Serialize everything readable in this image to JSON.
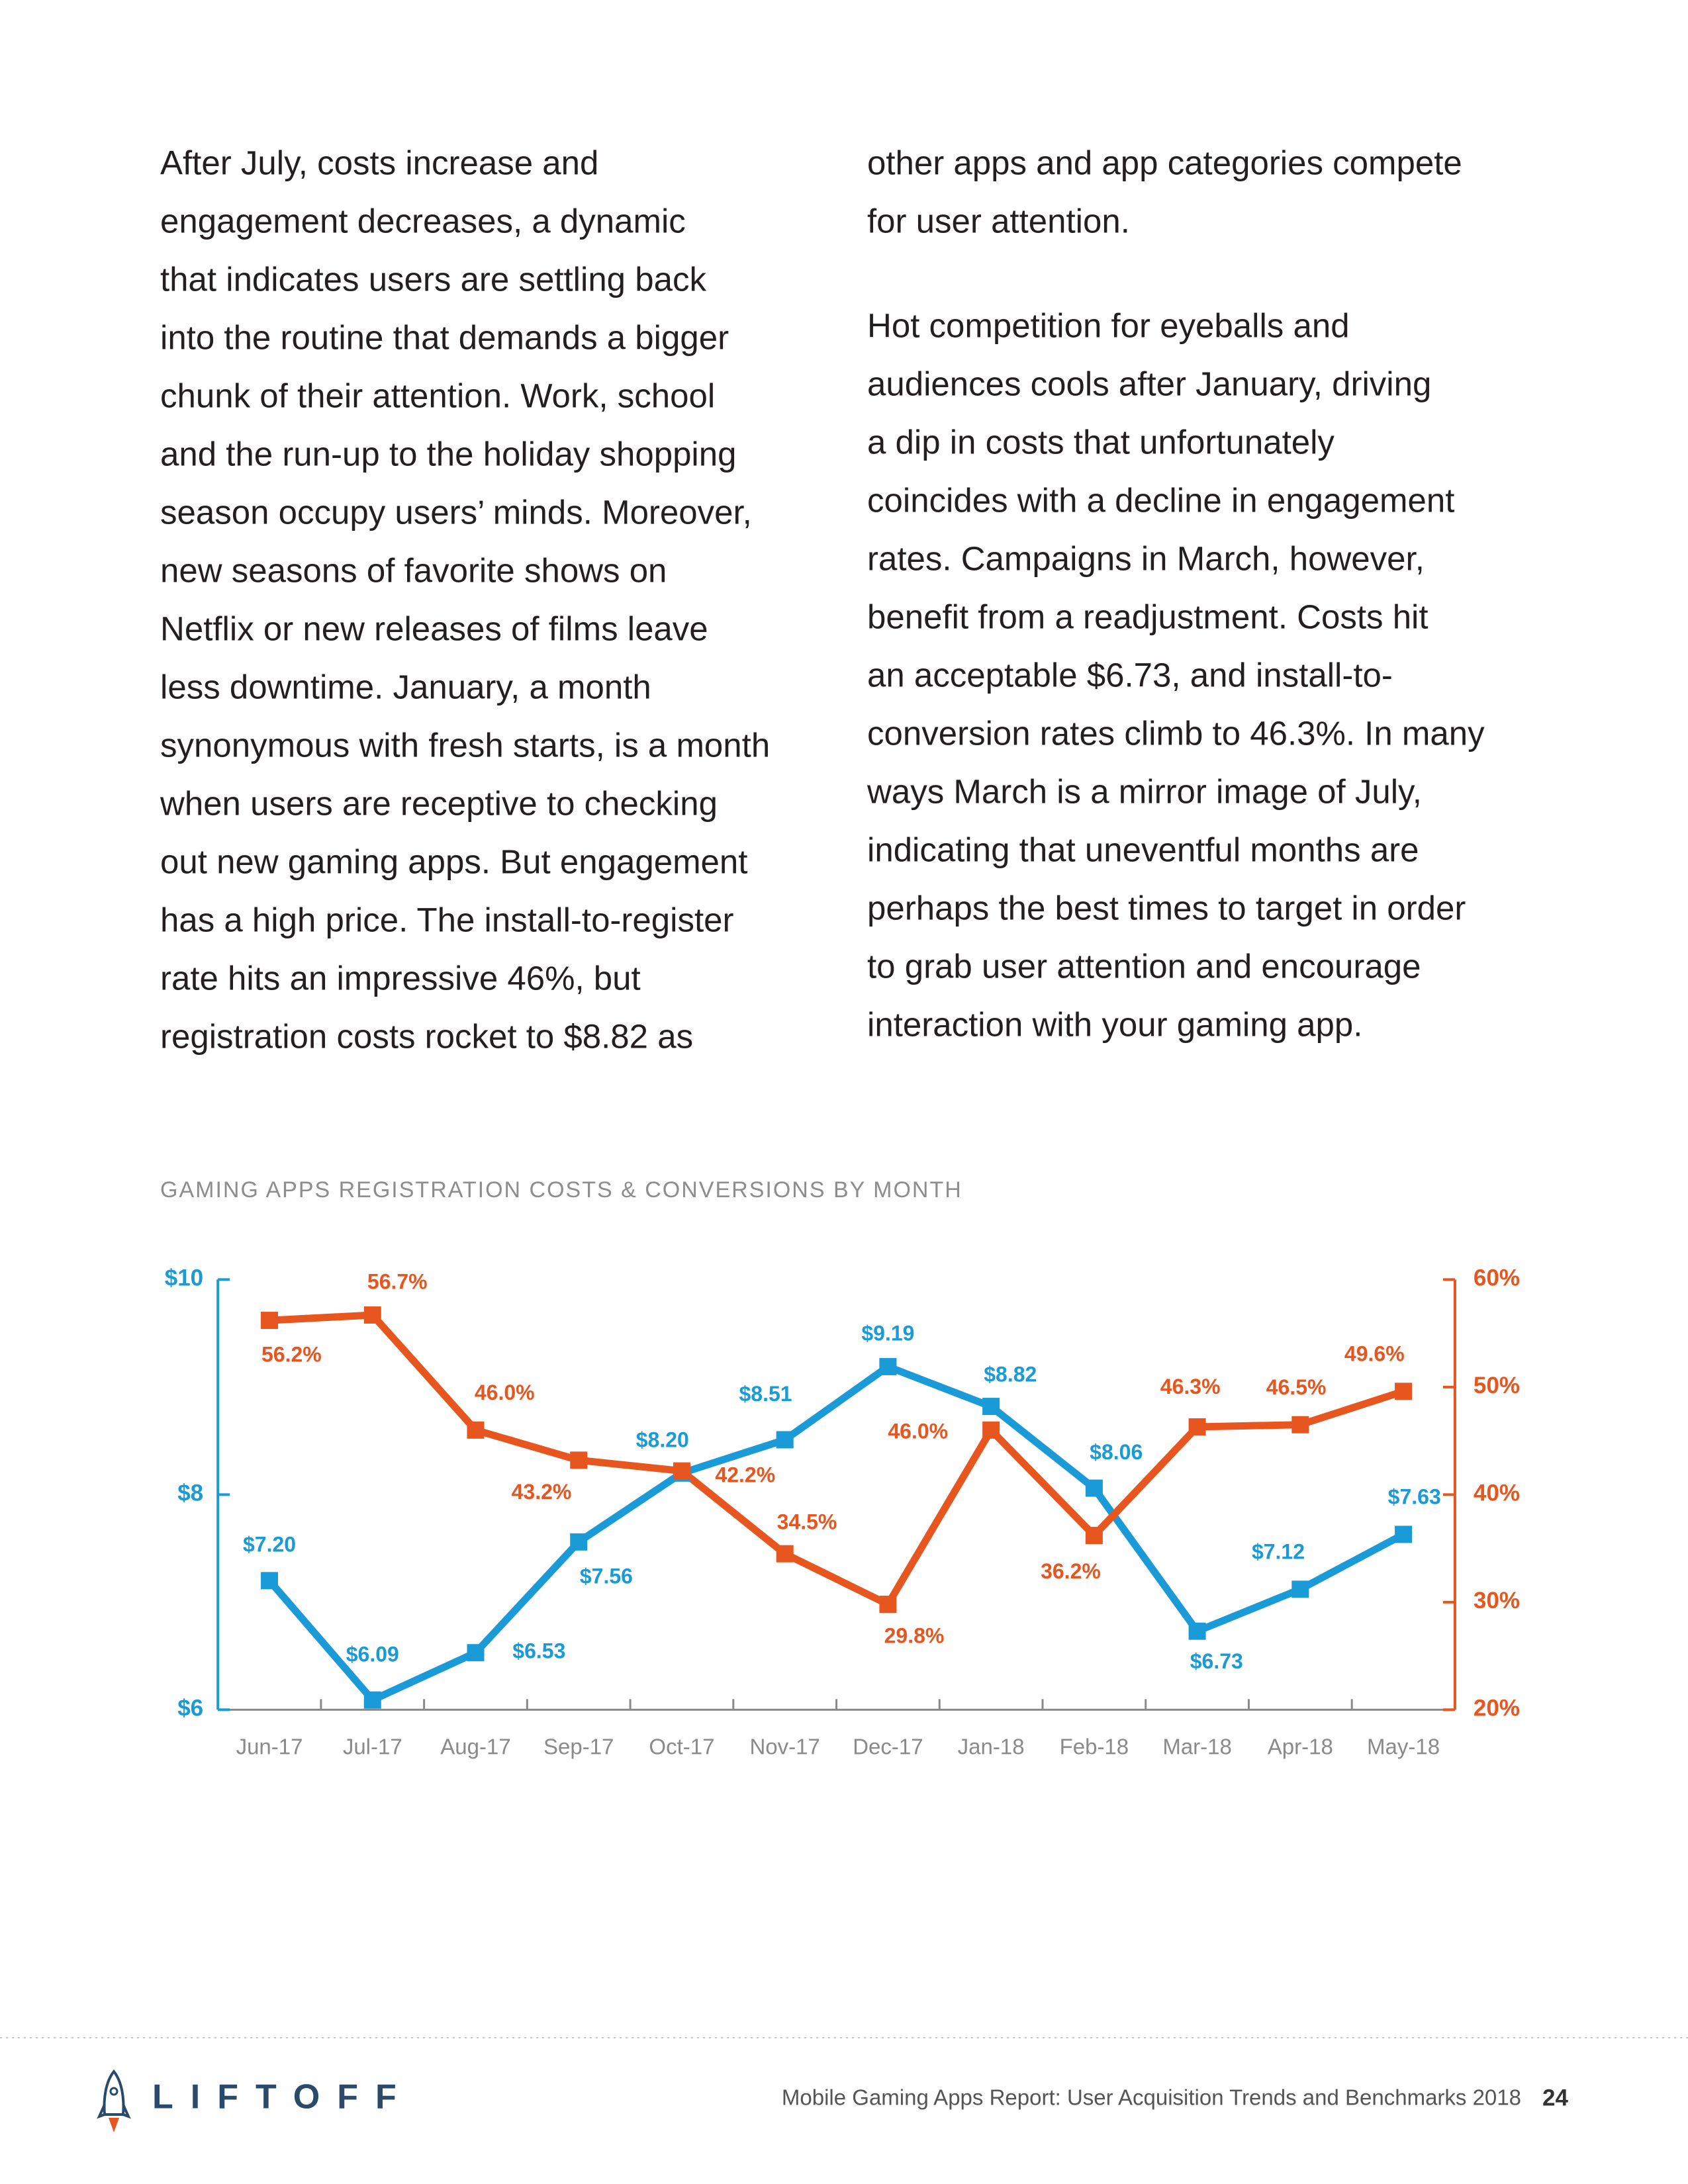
{
  "body": {
    "left": [
      "After July, costs increase and",
      "engagement decreases, a dynamic",
      "that indicates users are settling back",
      "into the routine that demands a bigger",
      "chunk of their attention. Work, school",
      "and the run-up to the holiday shopping",
      "season occupy users’ minds. Moreover,",
      "new seasons of favorite shows on",
      "Netflix or new releases of films leave",
      "less downtime. January, a month",
      "synonymous with fresh starts, is a month",
      "when users are receptive to checking",
      "out new gaming apps. But engagement",
      "has a high price. The install-to-register",
      "rate hits an impressive 46%, but",
      "registration costs rocket to $8.82 as"
    ],
    "right": [
      [
        "other apps and app categories compete",
        "for user attention."
      ],
      [
        "Hot competition for eyeballs and",
        "audiences cools after January, driving",
        "a dip in costs that unfortunately",
        "coincides with a decline in engagement",
        "rates. Campaigns in March, however,",
        "benefit from a readjustment. Costs hit",
        "an acceptable $6.73, and install-to-",
        "conversion rates climb to 46.3%. In many",
        "ways March is a mirror image of July,",
        "indicating that uneventful months are",
        "perhaps the best times to target in order",
        "to grab user attention and encourage",
        "interaction with your gaming app."
      ]
    ]
  },
  "chart_data": {
    "type": "line",
    "title": "GAMING APPS REGISTRATION COSTS & CONVERSIONS BY MONTH",
    "categories": [
      "Jun-17",
      "Jul-17",
      "Aug-17",
      "Sep-17",
      "Oct-17",
      "Nov-17",
      "Dec-17",
      "Jan-18",
      "Feb-18",
      "Mar-18",
      "Apr-18",
      "May-18"
    ],
    "series": [
      {
        "color": "#1a9ad6",
        "values": [
          7.2,
          6.09,
          6.53,
          7.56,
          8.2,
          8.51,
          9.19,
          8.82,
          8.06,
          6.73,
          7.12,
          7.63
        ],
        "value_labels": [
          "$7.20",
          "$6.09",
          "$6.53",
          "$7.56",
          "$8.20",
          "$8.51",
          "$9.19",
          "$8.82",
          "$8.06",
          "$6.73",
          "$7.12",
          "$7.63"
        ]
      },
      {
        "color": "#e8561f",
        "axis": "y2",
        "values": [
          56.2,
          56.7,
          46.0,
          43.2,
          42.2,
          34.5,
          29.8,
          46.0,
          36.2,
          46.3,
          46.5,
          49.6
        ],
        "value_labels": [
          "56.2%",
          "56.7%",
          "46.0%",
          "43.2%",
          "42.2%",
          "34.5%",
          "29.8%",
          "46.0%",
          "36.2%",
          "46.3%",
          "46.5%",
          "49.6%"
        ]
      }
    ],
    "ylim": [
      6,
      10
    ],
    "yticks": [
      {
        "value": 6,
        "label": "$6"
      },
      {
        "value": 8,
        "label": "$8"
      },
      {
        "value": 10,
        "label": "$10"
      }
    ],
    "y2lim": [
      20,
      60
    ],
    "y2ticks": [
      {
        "value": 20,
        "label": "20%"
      },
      {
        "value": 30,
        "label": "30%"
      },
      {
        "value": 40,
        "label": "40%"
      },
      {
        "value": 50,
        "label": "50%"
      },
      {
        "value": 60,
        "label": "60%"
      }
    ],
    "grid": false
  },
  "footer": {
    "logo": "LIFTOFF",
    "text": "Mobile Gaming Apps Report: User Acquisition Trends and Benchmarks 2018",
    "page": 24
  }
}
